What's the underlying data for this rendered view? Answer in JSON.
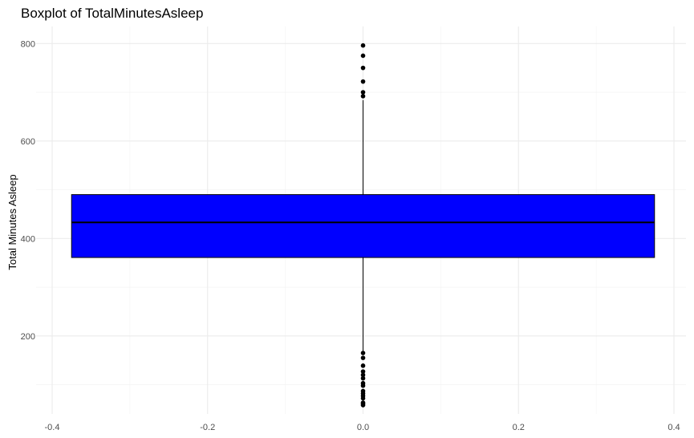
{
  "chart_data": {
    "type": "boxplot",
    "title": "Boxplot of TotalMinutesAsleep",
    "xlabel": "",
    "ylabel": "Total Minutes Asleep",
    "xlim": [
      -0.4,
      0.4
    ],
    "ylim": [
      40,
      835
    ],
    "x_ticks": [
      -0.4,
      -0.2,
      0.0,
      0.2,
      0.4
    ],
    "x_tick_labels": [
      "-0.4",
      "-0.2",
      "0.0",
      "0.2",
      "0.4"
    ],
    "y_ticks": [
      200,
      400,
      600,
      800
    ],
    "y_tick_labels": [
      "200",
      "400",
      "600",
      "800"
    ],
    "grid": true,
    "box": {
      "x_center": 0,
      "x_min": -0.375,
      "x_max": 0.375,
      "q1": 361,
      "median": 433,
      "q3": 490,
      "whisker_low": 166,
      "whisker_high": 684,
      "fill": "#0000ff",
      "stroke": "#000000"
    },
    "outliers": [
      796,
      775,
      750,
      722,
      700,
      692,
      165,
      155,
      139,
      127,
      120,
      113,
      103,
      98,
      87,
      82,
      77,
      72,
      63,
      61,
      58
    ]
  }
}
